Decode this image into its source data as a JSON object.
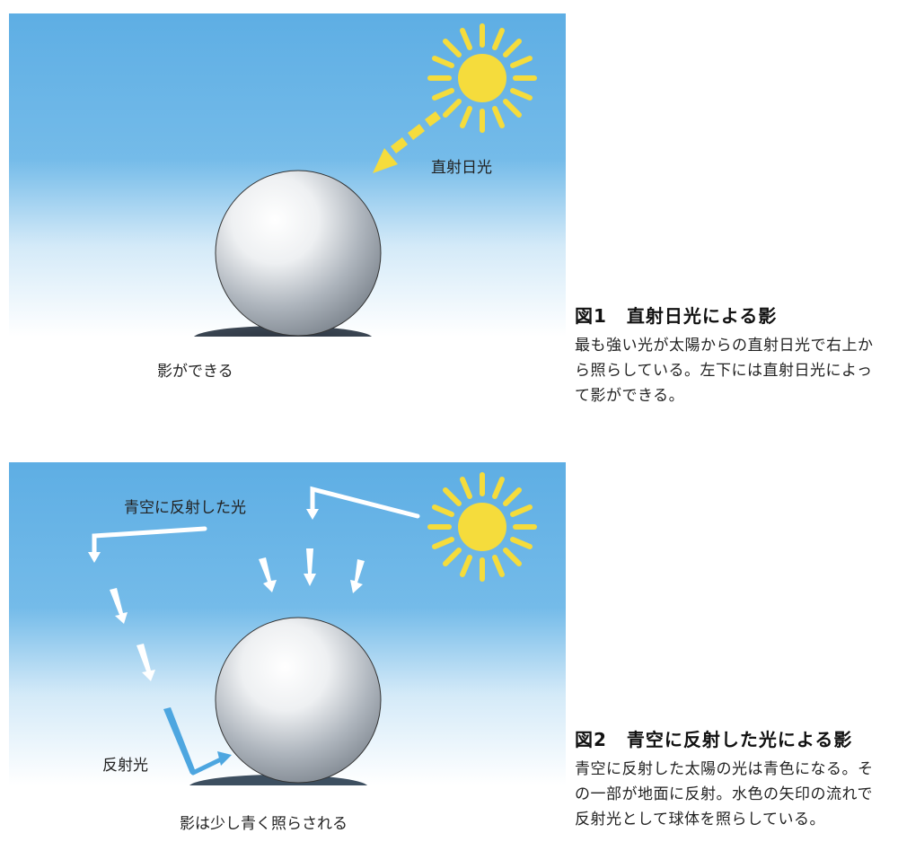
{
  "figure1": {
    "labels": {
      "direct_sunlight": "直射日光",
      "shadow_forms": "影ができる"
    },
    "caption": {
      "number": "図1",
      "title": "直射日光による影",
      "body": "最も強い光が太陽からの直射日光で右上から照らしている。左下には直射日光によって影ができる。"
    }
  },
  "figure2": {
    "labels": {
      "sky_reflected_light": "青空に反射した光",
      "reflected_light": "反射光",
      "shadow_bluish": "影は少し青く照らされる"
    },
    "caption": {
      "number": "図2",
      "title": "青空に反射した光による影",
      "body": "青空に反射した太陽の光は青色になる。その一部が地面に反射。水色の矢印の流れで反射光として球体を照らしている。"
    }
  },
  "colors": {
    "sky": "#5fb0e6",
    "sun": "#f5dc3c",
    "reflected_arrow": "#4da6e0"
  }
}
